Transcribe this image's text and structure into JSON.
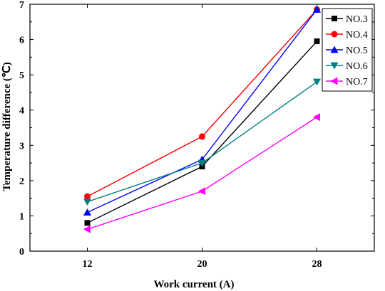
{
  "chart_data": {
    "type": "line",
    "title": "",
    "xlabel": "Work current (A)",
    "ylabel": "Temperature difference (℃)",
    "categories": [
      "12",
      "20",
      "28"
    ],
    "x": [
      12,
      20,
      28
    ],
    "xlim": [
      8,
      32
    ],
    "ylim": [
      0,
      7
    ],
    "yticks": [
      "0",
      "1",
      "2",
      "3",
      "4",
      "5",
      "6",
      "7"
    ],
    "grid": false,
    "legend_position": "top-right",
    "series": [
      {
        "name": "NO.3",
        "color": "#000000",
        "marker": "square",
        "values": [
          0.8,
          2.4,
          5.95
        ]
      },
      {
        "name": "NO.4",
        "color": "#ff0000",
        "marker": "circle",
        "values": [
          1.55,
          3.25,
          6.85
        ]
      },
      {
        "name": "NO.5",
        "color": "#0000ff",
        "marker": "triangle-up",
        "values": [
          1.1,
          2.6,
          6.85
        ]
      },
      {
        "name": "NO.6",
        "color": "#008080",
        "marker": "triangle-down",
        "values": [
          1.4,
          2.5,
          4.8
        ]
      },
      {
        "name": "NO.7",
        "color": "#ff00ff",
        "marker": "triangle-left",
        "values": [
          0.62,
          1.7,
          3.8
        ]
      }
    ]
  }
}
